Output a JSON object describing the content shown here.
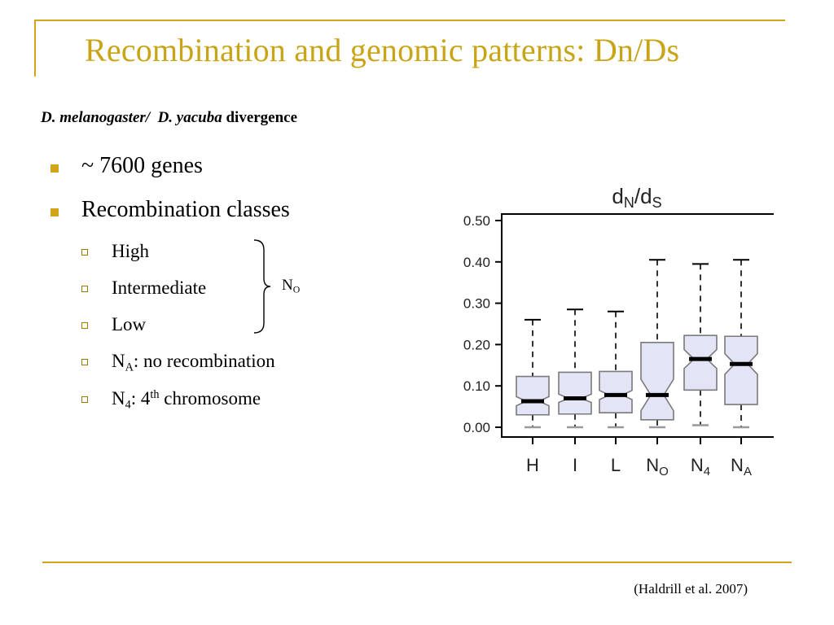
{
  "slide": {
    "title": "Recombination and genomic patterns: Dn/Ds",
    "subtitle": {
      "species1": "D. melanogaster/",
      "species2": "D. yacuba",
      "rest": "divergence"
    },
    "bullets": [
      {
        "text": "~ 7600 genes"
      },
      {
        "text": "Recombination classes"
      }
    ],
    "sub_bullets": {
      "high": "High",
      "intermediate": "Intermediate",
      "low": "Low",
      "na_main": "N",
      "na_sub": "A",
      "na_rest": ": no recombination",
      "n4_main": "N",
      "n4_sub": "4",
      "n4_mid": ": 4",
      "n4_sup": "th",
      "n4_rest": " chromosome"
    },
    "brace_label": {
      "main": "N",
      "sub": "O"
    },
    "citation": "(Haldrill et al. 2007)"
  },
  "colors": {
    "accent": "#d4a418",
    "title": "#c9a416",
    "box_fill": "#e3e4f6",
    "box_stroke": "#7a7a7a"
  },
  "chart_data": {
    "type": "boxplot",
    "notched": true,
    "title": {
      "main": "d",
      "sub1": "N",
      "sep": "/d",
      "sub2": "S"
    },
    "ylim": [
      0,
      0.5
    ],
    "yticks": [
      "0.00",
      "0.10",
      "0.20",
      "0.30",
      "0.40",
      "0.50"
    ],
    "categories": [
      {
        "main": "H",
        "sub": ""
      },
      {
        "main": "I",
        "sub": ""
      },
      {
        "main": "L",
        "sub": ""
      },
      {
        "main": "N",
        "sub": "O"
      },
      {
        "main": "N",
        "sub": "4"
      },
      {
        "main": "N",
        "sub": "A"
      }
    ],
    "boxes": [
      {
        "min": 0.0,
        "q1": 0.03,
        "median": 0.063,
        "q3": 0.123,
        "max": 0.26,
        "notch_low": 0.052,
        "notch_high": 0.074
      },
      {
        "min": 0.0,
        "q1": 0.032,
        "median": 0.07,
        "q3": 0.133,
        "max": 0.285,
        "notch_low": 0.06,
        "notch_high": 0.08
      },
      {
        "min": 0.0,
        "q1": 0.035,
        "median": 0.078,
        "q3": 0.135,
        "max": 0.28,
        "notch_low": 0.067,
        "notch_high": 0.089
      },
      {
        "min": 0.0,
        "q1": 0.018,
        "median": 0.078,
        "q3": 0.205,
        "max": 0.405,
        "notch_low": 0.04,
        "notch_high": 0.116
      },
      {
        "min": 0.005,
        "q1": 0.09,
        "median": 0.165,
        "q3": 0.222,
        "max": 0.395,
        "notch_low": 0.142,
        "notch_high": 0.188
      },
      {
        "min": 0.0,
        "q1": 0.055,
        "median": 0.153,
        "q3": 0.22,
        "max": 0.405,
        "notch_low": 0.128,
        "notch_high": 0.178
      }
    ]
  }
}
